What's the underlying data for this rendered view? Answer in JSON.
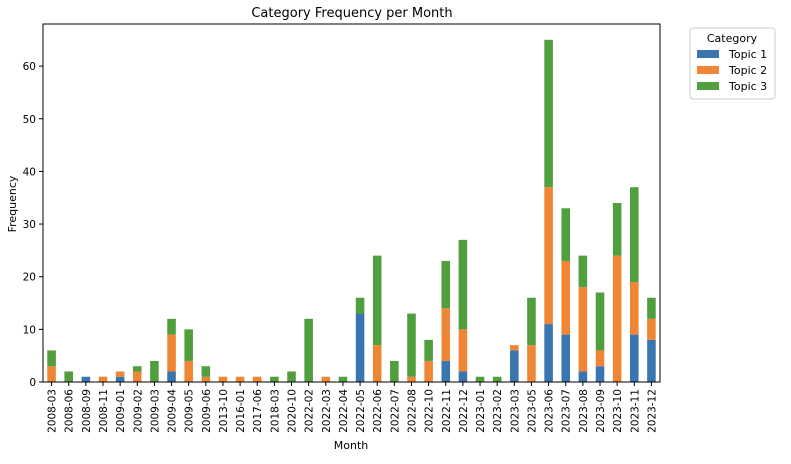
{
  "chart_data": {
    "type": "bar",
    "stacked": true,
    "title": "Category Frequency per Month",
    "xlabel": "Month",
    "ylabel": "Frequency",
    "ylim": [
      0,
      68
    ],
    "yticks": [
      0,
      10,
      20,
      30,
      40,
      50,
      60
    ],
    "grid": false,
    "legend": {
      "title": "Category",
      "placement": "outside-top-right"
    },
    "categories": [
      "2008-03",
      "2008-06",
      "2008-09",
      "2008-11",
      "2009-01",
      "2009-02",
      "2009-03",
      "2009-04",
      "2009-05",
      "2009-06",
      "2013-10",
      "2016-01",
      "2017-06",
      "2018-03",
      "2020-10",
      "2022-02",
      "2022-03",
      "2022-04",
      "2022-05",
      "2022-06",
      "2022-07",
      "2022-08",
      "2022-10",
      "2022-11",
      "2022-12",
      "2023-01",
      "2023-02",
      "2023-03",
      "2023-05",
      "2023-06",
      "2023-07",
      "2023-08",
      "2023-09",
      "2023-10",
      "2023-11",
      "2023-12"
    ],
    "series": [
      {
        "name": "Topic 1",
        "color": "#3b75af",
        "values": [
          0,
          0,
          1,
          0,
          1,
          0,
          0,
          2,
          0,
          0,
          0,
          0,
          0,
          0,
          0,
          0,
          0,
          0,
          13,
          0,
          0,
          0,
          0,
          4,
          2,
          0,
          0,
          6,
          0,
          11,
          9,
          2,
          3,
          0,
          9,
          8
        ]
      },
      {
        "name": "Topic 2",
        "color": "#ef8636",
        "values": [
          3,
          0,
          0,
          1,
          1,
          2,
          0,
          7,
          4,
          1,
          1,
          1,
          1,
          0,
          0,
          0,
          1,
          0,
          0,
          7,
          0,
          1,
          4,
          10,
          8,
          0,
          0,
          1,
          7,
          26,
          14,
          16,
          3,
          24,
          10,
          4
        ]
      },
      {
        "name": "Topic 3",
        "color": "#519e3e",
        "values": [
          3,
          2,
          0,
          0,
          0,
          1,
          4,
          3,
          6,
          2,
          0,
          0,
          0,
          1,
          2,
          12,
          0,
          1,
          3,
          17,
          4,
          12,
          4,
          9,
          17,
          1,
          1,
          0,
          9,
          28,
          10,
          6,
          11,
          10,
          18,
          4
        ]
      }
    ]
  }
}
